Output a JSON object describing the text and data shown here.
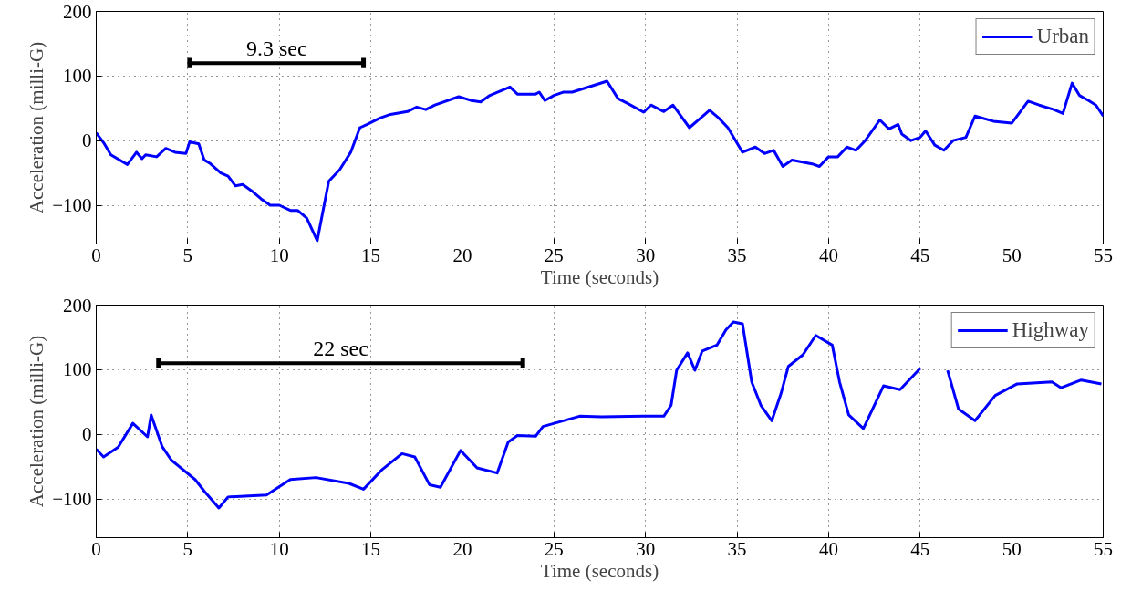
{
  "chart_data": [
    {
      "type": "line",
      "xlabel": "Time (seconds)",
      "ylabel": "Acceleration (milli-G)",
      "xlim": [
        0,
        55
      ],
      "xticks": [
        0,
        5,
        10,
        15,
        20,
        25,
        30,
        35,
        40,
        45,
        50,
        55
      ],
      "ylim": [
        -160,
        200
      ],
      "yticks": [
        {
          "value": -100,
          "label": "−100"
        },
        0,
        100,
        200
      ],
      "grid": true,
      "legend": "top right",
      "line_style": "solid",
      "x": [
        0,
        0.4,
        0.8,
        1.7,
        2.2,
        2.5,
        2.7,
        3.3,
        3.8,
        4.3,
        4.9,
        5.1,
        5.6,
        5.9,
        6.2,
        6.8,
        7.2,
        7.6,
        8,
        8.5,
        9,
        9.5,
        10,
        10.6,
        11,
        11.5,
        12.07,
        12.7,
        13.3,
        13.9,
        14.4,
        14.8,
        15.5,
        16,
        17,
        17.5,
        18,
        18.5,
        19.8,
        20.5,
        21,
        21.5,
        22.6,
        23,
        24,
        24.2,
        24.5,
        25,
        25.5,
        26,
        27.9,
        28.5,
        29,
        29.9,
        30.3,
        31,
        31.5,
        32.4,
        33.5,
        34,
        34.5,
        35.3,
        36,
        36.5,
        37,
        37.5,
        38,
        39.1,
        39.5,
        40,
        40.5,
        41,
        41.5,
        42,
        42.8,
        43.3,
        43.8,
        44,
        44.5,
        45,
        45.3,
        45.8,
        46.3,
        46.8,
        47.5,
        48,
        49,
        50,
        50.9,
        51.5,
        52.3,
        52.8,
        53.3,
        53.7,
        54.2,
        54.6,
        55
      ],
      "series": [
        {
          "name": "Urban",
          "color": "#0000ff",
          "values": [
            12,
            -3,
            -22,
            -37,
            -18,
            -28,
            -22,
            -25,
            -12,
            -18,
            -20,
            -2,
            -5,
            -30,
            -35,
            -50,
            -55,
            -70,
            -68,
            -78,
            -90,
            -100,
            -100,
            -108,
            -108,
            -120,
            -155,
            -63,
            -45,
            -18,
            20,
            25,
            35,
            40,
            45,
            52,
            48,
            55,
            68,
            62,
            60,
            70,
            83,
            72,
            72,
            75,
            62,
            70,
            75,
            75,
            92,
            65,
            58,
            44,
            55,
            45,
            55,
            20,
            47,
            35,
            20,
            -18,
            -10,
            -20,
            -15,
            -40,
            -30,
            -36,
            -40,
            -25,
            -25,
            -10,
            -15,
            0,
            32,
            18,
            25,
            10,
            0,
            5,
            15,
            -7,
            -15,
            0,
            5,
            38,
            30,
            27,
            61,
            55,
            48,
            42,
            89,
            70,
            62,
            55,
            38
          ]
        },
        {
          "type": "line",
          "color": "#000000",
          "x": [
            5.1,
            14.6
          ],
          "values": [
            120,
            120
          ],
          "errors": [
            8,
            8
          ]
        }
      ],
      "annotations": [
        {
          "text": "9.3 sec",
          "x": 9.85,
          "y": 120
        }
      ]
    },
    {
      "type": "line",
      "xlabel": "Time (seconds)",
      "ylabel": "Acceleration (milli-G)",
      "xlim": [
        0,
        55
      ],
      "xticks": [
        0,
        5,
        10,
        15,
        20,
        25,
        30,
        35,
        40,
        45,
        50,
        55
      ],
      "ylim": [
        -160,
        200
      ],
      "yticks": [
        {
          "value": -100,
          "label": "−100"
        },
        0,
        100,
        200
      ],
      "grid": true,
      "legend": "top right",
      "line_style": "solid",
      "x": [
        0,
        0.4,
        1.2,
        2.0,
        2.8,
        3.0,
        3.6,
        4.1,
        5.4,
        5.9,
        6.7,
        7.2,
        9.3,
        10.6,
        12.0,
        13.8,
        14.6,
        15.6,
        16.7,
        17.4,
        18.2,
        18.8,
        19.9,
        20.8,
        21.9,
        22.5,
        23.0,
        24.0,
        24.4,
        26.4,
        27.6,
        29.9,
        31.0,
        31.4,
        31.7,
        32.3,
        32.7,
        33.1,
        33.9,
        34.4,
        34.8,
        35.3,
        35.8,
        36.3,
        36.9,
        37.4,
        37.8,
        38.6,
        39.3,
        40.2,
        40.6,
        41.1,
        41.9,
        43.0,
        43.9,
        45.0,
        45.8,
        46.5,
        47.1,
        48.0,
        49.1,
        50.3,
        52.2,
        52.7,
        53.8,
        54.9
      ],
      "series": [
        {
          "name": "Highway",
          "color": "#0000ff",
          "values": [
            -23,
            -35,
            -20,
            17,
            -4,
            30,
            -19,
            -40,
            -70,
            -88,
            -114,
            -97,
            -94,
            -70,
            -67,
            -76,
            -85,
            -55,
            -30,
            -35,
            -78,
            -82,
            -25,
            -52,
            -60,
            -12,
            -2,
            -3,
            12,
            28,
            27,
            28,
            28,
            45,
            99,
            126,
            99,
            129,
            138,
            162,
            174,
            171,
            81,
            45,
            21,
            63,
            105,
            123,
            153,
            138,
            81,
            30,
            9,
            75,
            69,
            102,
            null,
            99,
            39,
            21,
            60,
            78,
            81,
            72,
            84,
            78
          ]
        },
        {
          "type": "line",
          "color": "#000000",
          "x": [
            3.4,
            23.3
          ],
          "values": [
            110,
            110
          ],
          "errors": [
            8,
            8
          ]
        }
      ],
      "annotations": [
        {
          "text": "22 sec",
          "x": 13.35,
          "y": 110
        }
      ]
    }
  ]
}
